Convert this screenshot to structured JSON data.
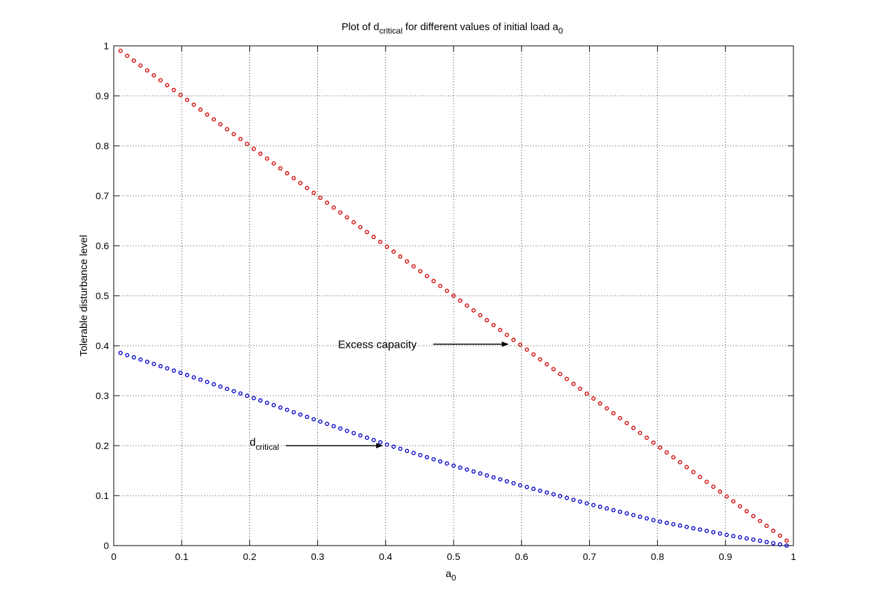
{
  "chart_data": {
    "type": "scatter",
    "title": {
      "prefix": "Plot of d",
      "sub1": "critical",
      "middle": " for different values of initial load a",
      "sub2": "0"
    },
    "xlabel": {
      "base": "a",
      "sub": "0"
    },
    "ylabel": "Tolerable disturbance level",
    "xlim": [
      0,
      1
    ],
    "ylim": [
      0,
      1
    ],
    "xticks": [
      "0",
      "0.1",
      "0.2",
      "0.3",
      "0.4",
      "0.5",
      "0.6",
      "0.7",
      "0.8",
      "0.9",
      "1"
    ],
    "yticks": [
      "0",
      "0.1",
      "0.2",
      "0.3",
      "0.4",
      "0.5",
      "0.6",
      "0.7",
      "0.8",
      "0.9",
      "1"
    ],
    "grid": true,
    "x_range": {
      "start": 0.01,
      "end": 0.99,
      "step": 0.0098
    },
    "series": [
      {
        "marker": "circle",
        "color": "#d40000",
        "formula": "1 - a0",
        "y_start": 0.99,
        "y_end": 0.01
      },
      {
        "marker": "circle",
        "color": "#0000cc",
        "formula": "approx. critical disturbance d_critical(a0)",
        "points": [
          [
            0.0,
            0.39
          ],
          [
            0.1,
            0.345
          ],
          [
            0.2,
            0.298
          ],
          [
            0.3,
            0.25
          ],
          [
            0.4,
            0.203
          ],
          [
            0.5,
            0.16
          ],
          [
            0.6,
            0.12
          ],
          [
            0.7,
            0.083
          ],
          [
            0.8,
            0.049
          ],
          [
            0.9,
            0.022
          ],
          [
            0.99,
            0.0
          ]
        ]
      }
    ],
    "annotations": [
      {
        "text": "Excess capacity",
        "text_at": [
          0.33,
          0.395
        ],
        "arrow_from": [
          0.47,
          0.403
        ],
        "arrow_to": [
          0.58,
          0.403
        ]
      },
      {
        "text": "d",
        "sub": "critical",
        "text_at": [
          0.2,
          0.2
        ],
        "arrow_from": [
          0.253,
          0.2
        ],
        "arrow_to": [
          0.395,
          0.2
        ]
      }
    ]
  }
}
